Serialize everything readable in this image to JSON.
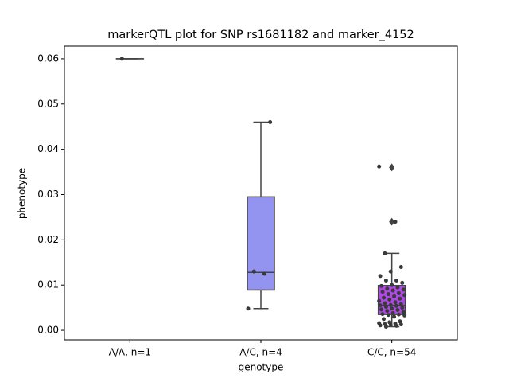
{
  "chart_data": {
    "type": "box",
    "title": "markerQTL plot for SNP rs1681182 and marker_4152",
    "x_label": "genotype",
    "y_label": "phenotype",
    "categories": [
      "A/A, n=1",
      "A/C, n=4",
      "C/C, n=54"
    ],
    "ylim": [
      -0.0021,
      0.0628
    ],
    "yticks": [
      {
        "value": 0,
        "label": "0.00"
      },
      {
        "value": 0.01,
        "label": "0.01"
      },
      {
        "value": 0.02,
        "label": "0.02"
      },
      {
        "value": 0.03,
        "label": "0.03"
      },
      {
        "value": 0.04,
        "label": "0.04"
      },
      {
        "value": 0.05,
        "label": "0.05"
      },
      {
        "value": 0.06,
        "label": "0.06"
      }
    ],
    "grid": false,
    "line_color": "#444444",
    "point_color": "#3a3a3a",
    "boxes": [
      {
        "min": 0.06,
        "q1": 0.06,
        "median": 0.06,
        "q3": 0.06,
        "max": 0.06,
        "outliers": [],
        "color": "#6a6ae8"
      },
      {
        "min": 0.0048,
        "q1": 0.0089,
        "median": 0.0128,
        "q3": 0.0295,
        "max": 0.046,
        "outliers": [],
        "color": "#9393f0"
      },
      {
        "min": 0.0008,
        "q1": 0.0035,
        "median": 0.0055,
        "q3": 0.0099,
        "max": 0.017,
        "outliers": [
          0.036,
          0.024
        ],
        "color": "#b048e8"
      }
    ],
    "points": [
      [
        0.06
      ],
      [
        0.0048,
        0.0125,
        0.013,
        0.046
      ],
      [
        0.0362,
        0.024,
        0.017,
        0.014,
        0.013,
        0.012,
        0.011,
        0.011,
        0.0105,
        0.01,
        0.0098,
        0.0095,
        0.0092,
        0.009,
        0.0088,
        0.0085,
        0.0082,
        0.008,
        0.0078,
        0.0075,
        0.0072,
        0.007,
        0.0068,
        0.0065,
        0.0062,
        0.006,
        0.0058,
        0.0056,
        0.0055,
        0.0054,
        0.0052,
        0.005,
        0.0048,
        0.0046,
        0.0045,
        0.0043,
        0.004,
        0.0038,
        0.0036,
        0.0035,
        0.0034,
        0.0033,
        0.003,
        0.0025,
        0.002,
        0.0018,
        0.0016,
        0.0015,
        0.0014,
        0.0013,
        0.0012,
        0.0011,
        0.001,
        0.0008
      ]
    ]
  }
}
